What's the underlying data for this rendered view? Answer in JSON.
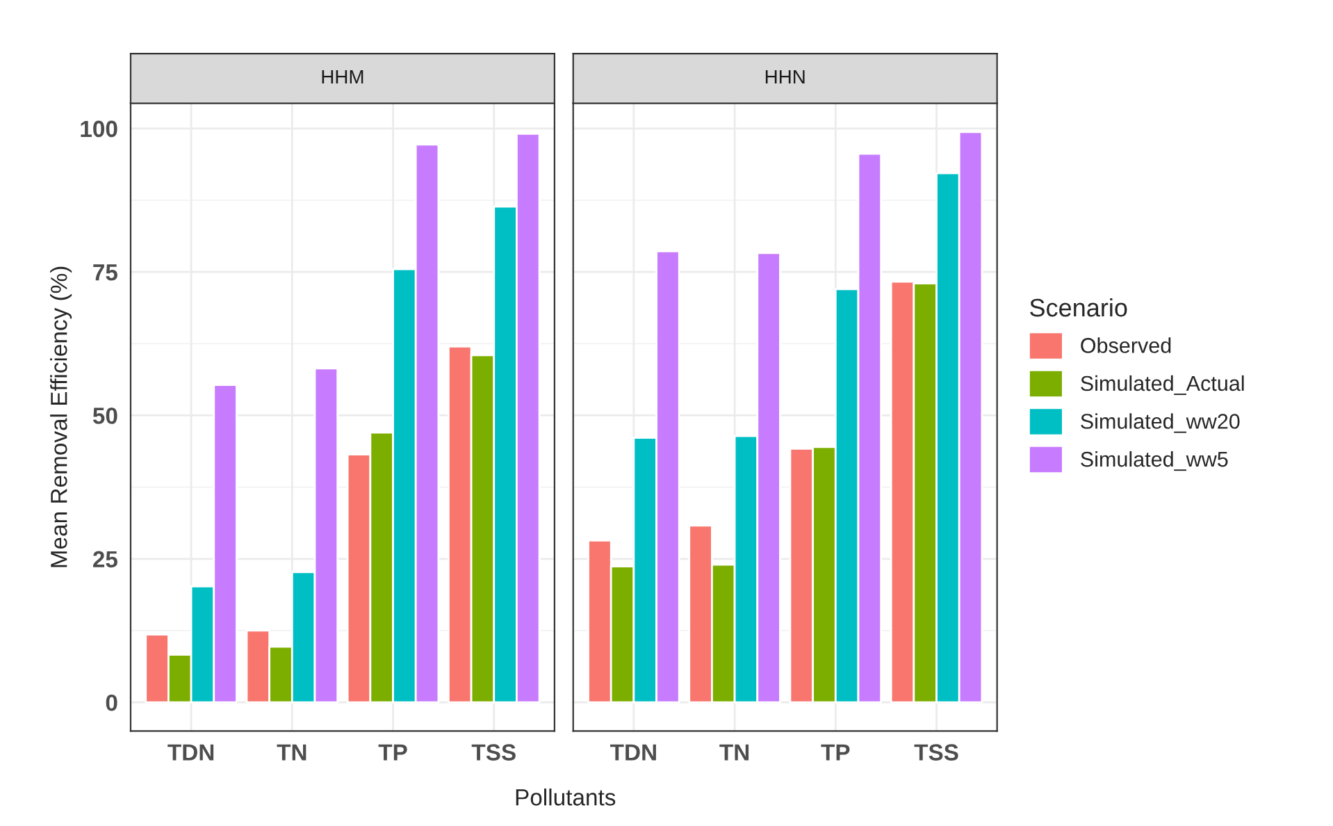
{
  "chart_data": [
    {
      "type": "bar",
      "title": "HHM",
      "xlabel": "Pollutants",
      "ylabel": "Mean Removal Efficiency (%)",
      "categories": [
        "TDN",
        "TN",
        "TP",
        "TSS"
      ],
      "ylim": [
        -5,
        104.4
      ],
      "yticks": [
        0,
        25,
        50,
        75,
        100
      ],
      "grid": true,
      "series": [
        {
          "color": "#f8766d",
          "values": [
            11.8,
            12.5,
            43.2,
            62.0
          ]
        },
        {
          "color": "#7cae00",
          "values": [
            8.3,
            9.7,
            47.0,
            60.5
          ]
        },
        {
          "color": "#00bfc4",
          "values": [
            20.2,
            22.7,
            75.5,
            86.4
          ]
        },
        {
          "color": "#c77cff",
          "values": [
            55.3,
            58.2,
            97.2,
            99.1
          ]
        }
      ]
    },
    {
      "type": "bar",
      "title": "HHN",
      "categories": [
        "TDN",
        "TN",
        "TP",
        "TSS"
      ],
      "ylim": [
        -5,
        104.4
      ],
      "yticks": [
        0,
        25,
        50,
        75,
        100
      ],
      "grid": true,
      "tick_labels": "x",
      "legend": "right",
      "legend_title": "Scenario",
      "series": [
        {
          "name": "Observed",
          "color": "#f8766d",
          "values": [
            28.2,
            30.8,
            44.2,
            73.3
          ]
        },
        {
          "name": "Simulated_Actual",
          "color": "#7cae00",
          "values": [
            23.7,
            24.0,
            44.5,
            73.0
          ]
        },
        {
          "name": "Simulated_ww20",
          "color": "#00bfc4",
          "values": [
            46.1,
            46.4,
            72.0,
            92.2
          ]
        },
        {
          "name": "Simulated_ww5",
          "color": "#c77cff",
          "values": [
            78.6,
            78.3,
            95.6,
            99.4
          ]
        }
      ]
    }
  ]
}
